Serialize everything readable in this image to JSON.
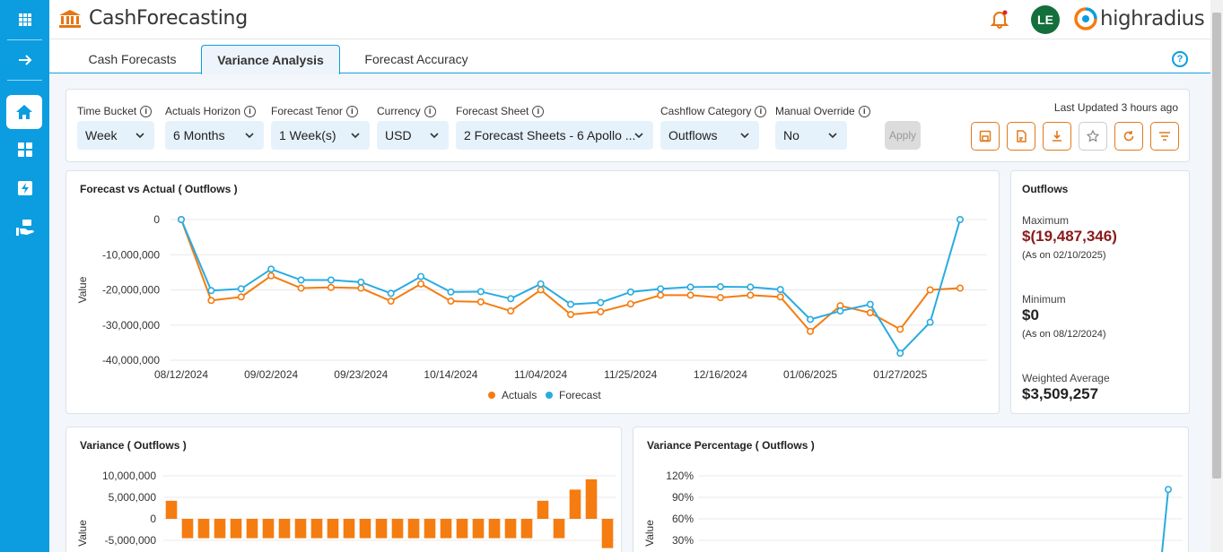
{
  "app": {
    "title": "CashForecasting",
    "brand": "highradius",
    "user_initials": "LE"
  },
  "tabs": [
    {
      "label": "Cash Forecasts",
      "active": false
    },
    {
      "label": "Variance Analysis",
      "active": true
    },
    {
      "label": "Forecast Accuracy",
      "active": false
    }
  ],
  "filters": {
    "time_bucket": {
      "label": "Time Bucket",
      "value": "Week"
    },
    "actuals_horizon": {
      "label": "Actuals Horizon",
      "value": "6 Months"
    },
    "forecast_tenor": {
      "label": "Forecast Tenor",
      "value": "1 Week(s)"
    },
    "currency": {
      "label": "Currency",
      "value": "USD"
    },
    "forecast_sheet": {
      "label": "Forecast Sheet",
      "value": "2 Forecast Sheets - 6 Apollo ..."
    },
    "cashflow_category": {
      "label": "Cashflow Category",
      "value": "Outflows"
    },
    "manual_override": {
      "label": "Manual Override",
      "value": "No"
    },
    "apply_label": "Apply",
    "last_updated": "Last Updated 3 hours ago"
  },
  "toolbar_icons": [
    "save-icon",
    "pdf-icon",
    "download-icon",
    "star-icon",
    "refresh-icon",
    "filter-icon"
  ],
  "colors": {
    "primary": "#0b9de0",
    "actuals": "#f57c10",
    "forecast": "#29abe2",
    "accent_orange": "#e07a1a",
    "max_red": "#8a1a1a"
  },
  "forecast_vs_actual": {
    "title": "Forecast vs Actual ( Outflows )",
    "ylabel": "Value",
    "legend": {
      "actuals": "Actuals",
      "forecast": "Forecast"
    }
  },
  "summary": {
    "title": "Outflows",
    "max_label": "Maximum",
    "max_value": "$(19,487,346)",
    "max_date": "(As on 02/10/2025)",
    "min_label": "Minimum",
    "min_value": "$0",
    "min_date": "(As on 08/12/2024)",
    "avg_label": "Weighted Average",
    "avg_value": "$3,509,257"
  },
  "variance": {
    "title": "Variance ( Outflows )",
    "ylabel": "Value"
  },
  "variance_pct": {
    "title": "Variance Percentage ( Outflows )",
    "ylabel": "Value"
  },
  "chart_data": [
    {
      "type": "line",
      "title": "Forecast vs Actual ( Outflows )",
      "ylabel": "Value",
      "ylim": [
        -40000000,
        0
      ],
      "yticks": [
        "0",
        "-10,000,000",
        "-20,000,000",
        "-30,000,000",
        "-40,000,000"
      ],
      "ytick_values": [
        0,
        -10000000,
        -20000000,
        -30000000,
        -40000000
      ],
      "xtick_labels": [
        "08/12/2024",
        "09/02/2024",
        "09/23/2024",
        "10/14/2024",
        "11/04/2024",
        "11/25/2024",
        "12/16/2024",
        "01/06/2025",
        "01/27/2025"
      ],
      "series": [
        {
          "name": "Actuals",
          "values": [
            0,
            -23000000,
            -22000000,
            -16000000,
            -19500000,
            -19300000,
            -19500000,
            -23200000,
            -18300000,
            -23200000,
            -23400000,
            -26000000,
            -20000000,
            -27000000,
            -26200000,
            -24000000,
            -21500000,
            -21500000,
            -22200000,
            -21500000,
            -22000000,
            -31800000,
            -24500000,
            -26500000,
            -31200000,
            -20000000,
            -19500000
          ]
        },
        {
          "name": "Forecast",
          "values": [
            0,
            -20200000,
            -19700000,
            -14100000,
            -17200000,
            -17200000,
            -17800000,
            -21000000,
            -16200000,
            -20600000,
            -20500000,
            -22500000,
            -18300000,
            -24100000,
            -23600000,
            -20600000,
            -19700000,
            -19200000,
            -19100000,
            -19200000,
            -19900000,
            -28400000,
            -26000000,
            -24100000,
            -38000000,
            -29200000,
            0
          ]
        }
      ],
      "grid": true,
      "legend": "bottom-center"
    },
    {
      "type": "bar",
      "title": "Variance ( Outflows )",
      "ylabel": "Value",
      "ylim": [
        -5000000,
        10000000
      ],
      "yticks": [
        "10,000,000",
        "5,000,000",
        "0",
        "-5,000,000"
      ],
      "ytick_values": [
        10000000,
        5000000,
        0,
        -5000000
      ],
      "values": [
        4200000,
        -4500000,
        -4500000,
        -4500000,
        -4500000,
        -4500000,
        -4500000,
        -4500000,
        -4500000,
        -4500000,
        -4500000,
        -4500000,
        -4500000,
        -4500000,
        -4500000,
        -4500000,
        -4500000,
        -4500000,
        -4500000,
        -4500000,
        -4500000,
        -4500000,
        -4500000,
        4200000,
        -4500000,
        6800000,
        9200000,
        -6800000
      ]
    },
    {
      "type": "line",
      "title": "Variance Percentage ( Outflows )",
      "ylabel": "Value",
      "yticks": [
        "120%",
        "90%",
        "60%",
        "30%"
      ],
      "ytick_values": [
        120,
        90,
        60,
        30
      ],
      "series": [
        {
          "values": [
            null,
            101
          ]
        }
      ]
    }
  ]
}
